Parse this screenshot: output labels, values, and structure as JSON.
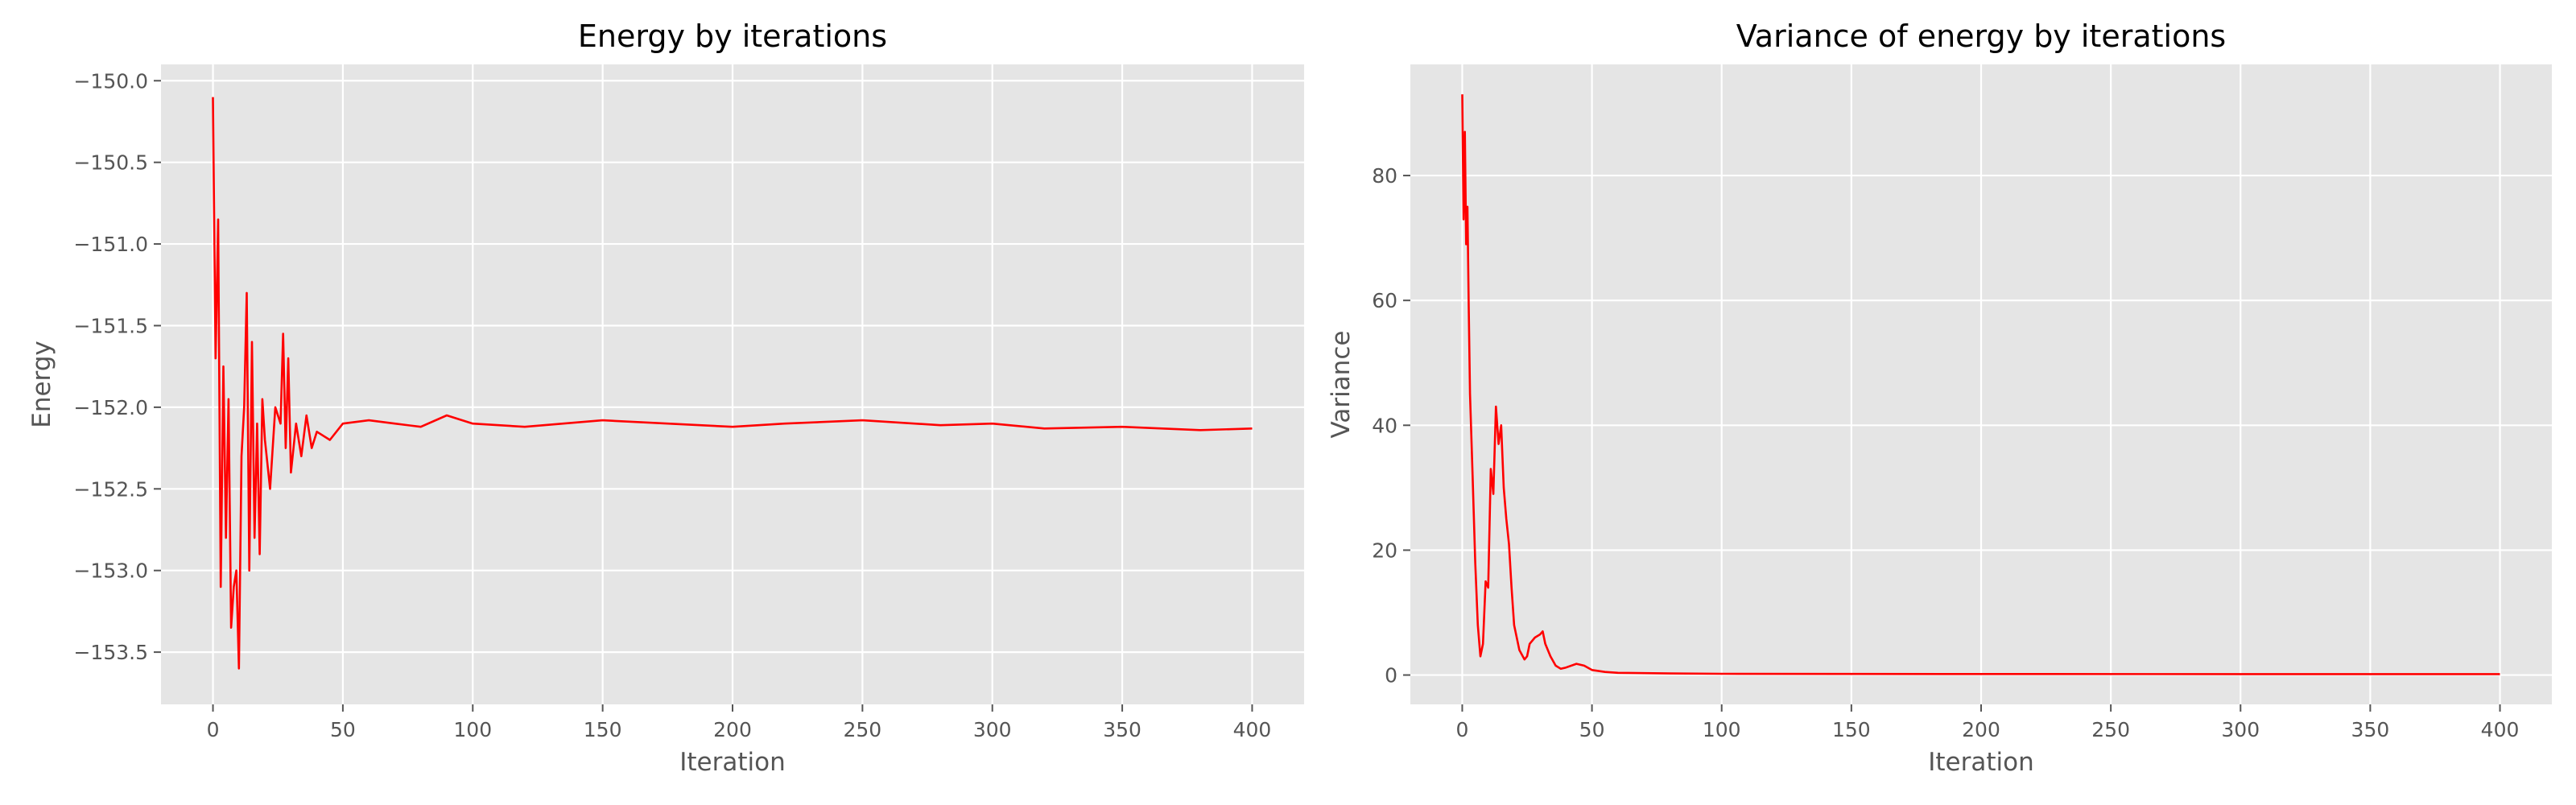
{
  "chart_data": [
    {
      "type": "line",
      "title": "Energy by iterations",
      "xlabel": "Iteration",
      "ylabel": "Energy",
      "xlim": [
        -20,
        420
      ],
      "ylim": [
        -153.82,
        -149.9
      ],
      "xticks": [
        0,
        50,
        100,
        150,
        200,
        250,
        300,
        350,
        400
      ],
      "yticks": [
        -150.0,
        -150.5,
        -151.0,
        -151.5,
        -152.0,
        -152.5,
        -153.0,
        -153.5
      ],
      "ytick_labels": [
        "−150.0",
        "−150.5",
        "−151.0",
        "−151.5",
        "−152.0",
        "−152.5",
        "−153.0",
        "−153.5"
      ],
      "grid": true,
      "series": [
        {
          "color": "#ff0000",
          "x": [
            0,
            1,
            2,
            3,
            4,
            5,
            6,
            7,
            8,
            9,
            10,
            11,
            12,
            13,
            14,
            15,
            16,
            17,
            18,
            19,
            20,
            22,
            24,
            26,
            27,
            28,
            29,
            30,
            32,
            34,
            36,
            38,
            40,
            45,
            50,
            60,
            70,
            80,
            90,
            100,
            120,
            150,
            200,
            220,
            250,
            280,
            300,
            320,
            350,
            380,
            400
          ],
          "y": [
            -150.1,
            -151.7,
            -150.85,
            -153.1,
            -151.75,
            -152.8,
            -151.95,
            -153.35,
            -153.1,
            -153.0,
            -153.6,
            -152.3,
            -152.0,
            -151.3,
            -153.0,
            -151.6,
            -152.8,
            -152.1,
            -152.9,
            -151.95,
            -152.2,
            -152.5,
            -152.0,
            -152.1,
            -151.55,
            -152.25,
            -151.7,
            -152.4,
            -152.1,
            -152.3,
            -152.05,
            -152.25,
            -152.15,
            -152.2,
            -152.1,
            -152.08,
            -152.1,
            -152.12,
            -152.05,
            -152.1,
            -152.12,
            -152.08,
            -152.12,
            -152.1,
            -152.08,
            -152.11,
            -152.1,
            -152.13,
            -152.12,
            -152.14,
            -152.13
          ]
        }
      ]
    },
    {
      "type": "line",
      "title": "Variance of energy by iterations",
      "xlabel": "Iteration",
      "ylabel": "Variance",
      "xlim": [
        -20,
        420
      ],
      "ylim": [
        -4.7,
        97.8
      ],
      "xticks": [
        0,
        50,
        100,
        150,
        200,
        250,
        300,
        350,
        400
      ],
      "yticks": [
        0,
        20,
        40,
        60,
        80
      ],
      "ytick_labels": [
        "0",
        "20",
        "40",
        "60",
        "80"
      ],
      "grid": true,
      "series": [
        {
          "color": "#ff0000",
          "x": [
            0,
            0.5,
            1,
            1.5,
            2,
            2.5,
            3,
            4,
            5,
            6,
            7,
            8,
            9,
            10,
            11,
            12,
            13,
            14,
            15,
            16,
            17,
            18,
            19,
            20,
            22,
            24,
            25,
            26,
            28,
            30,
            31,
            32,
            34,
            36,
            38,
            40,
            44,
            47,
            50,
            55,
            60,
            80,
            100,
            150,
            200,
            300,
            400
          ],
          "y": [
            93,
            73,
            87,
            69,
            75,
            59,
            45,
            32,
            18,
            8,
            3,
            5,
            15,
            14,
            33,
            29,
            43,
            37,
            40,
            30,
            25,
            21,
            14,
            8,
            4,
            2.5,
            3,
            5,
            6,
            6.5,
            7,
            5,
            3,
            1.5,
            1,
            1.2,
            1.8,
            1.5,
            0.8,
            0.5,
            0.35,
            0.25,
            0.2,
            0.18,
            0.16,
            0.15,
            0.15
          ]
        }
      ]
    }
  ]
}
